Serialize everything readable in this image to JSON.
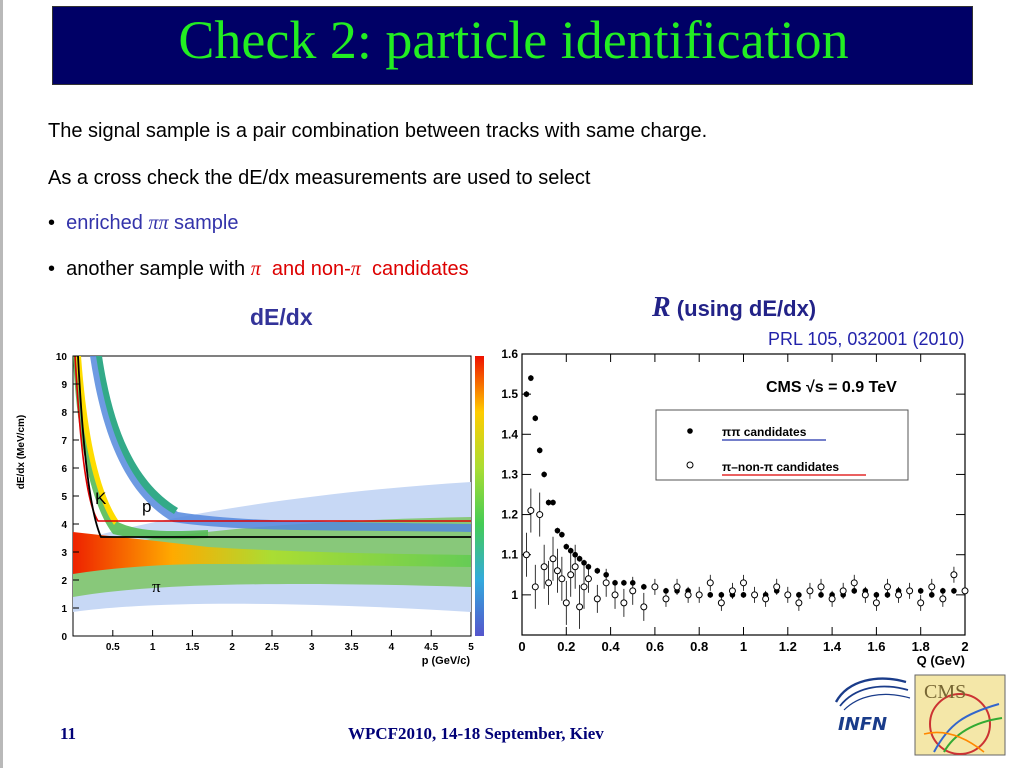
{
  "slide": {
    "title": "Check  2: particle identification",
    "line1": "The signal sample is a pair combination between tracks with same charge.",
    "line2": "As a cross check the dE/dx measurements are used to select",
    "bullet_mark": "•",
    "bullet1": {
      "pre": "enriched ",
      "sym": "ππ",
      "post": " sample"
    },
    "bullet2": {
      "pre": "another sample with ",
      "sym1": "π",
      "mid": "  and non-",
      "sym2": "π",
      "post": "  candidates"
    },
    "footer_page": "11",
    "footer_conf": "WPCF2010, 14-18 September, Kiev"
  },
  "left_plot": {
    "heading": "dE/dx",
    "ylabel": "dE/dx (MeV/cm)",
    "xlabel": "p (GeV/c)",
    "yticks": [
      "0",
      "1",
      "2",
      "3",
      "4",
      "5",
      "6",
      "7",
      "8",
      "9",
      "10"
    ],
    "xticks": [
      "0.5",
      "1",
      "1.5",
      "2",
      "2.5",
      "3",
      "3.5",
      "4",
      "4.5",
      "5"
    ],
    "band_labels": {
      "K": "K",
      "p": "p",
      "pi": "π"
    }
  },
  "right_plot": {
    "heading_symbol": "R",
    "heading_text": " (using dE/dx)",
    "reference": "PRL 105, 032001 (2010)",
    "experiment_label": "CMS  √s = 0.9 TeV",
    "xlabel": "Q (GeV)",
    "legend": [
      "ππ candidates",
      "π–non-π candidates"
    ]
  },
  "chart_data": {
    "type": "scatter",
    "title": "",
    "xlabel": "Q (GeV)",
    "ylabel": "",
    "xlim": [
      0,
      2
    ],
    "ylim": [
      0.9,
      1.6
    ],
    "xticks": [
      "0",
      "0.2",
      "0.4",
      "0.6",
      "0.8",
      "1",
      "1.2",
      "1.4",
      "1.6",
      "1.8",
      "2"
    ],
    "yticks": [
      "1",
      "1.1",
      "1.2",
      "1.3",
      "1.4",
      "1.5",
      "1.6"
    ],
    "series": [
      {
        "name": "ππ candidates",
        "marker": "filled",
        "x": [
          0.02,
          0.04,
          0.06,
          0.08,
          0.1,
          0.12,
          0.14,
          0.16,
          0.18,
          0.2,
          0.22,
          0.24,
          0.26,
          0.28,
          0.3,
          0.34,
          0.38,
          0.42,
          0.46,
          0.5,
          0.55,
          0.6,
          0.65,
          0.7,
          0.75,
          0.8,
          0.85,
          0.9,
          0.95,
          1.0,
          1.05,
          1.1,
          1.15,
          1.2,
          1.25,
          1.3,
          1.35,
          1.4,
          1.45,
          1.5,
          1.55,
          1.6,
          1.65,
          1.7,
          1.75,
          1.8,
          1.85,
          1.9,
          1.95,
          2.0
        ],
        "y": [
          1.5,
          1.54,
          1.44,
          1.36,
          1.3,
          1.23,
          1.23,
          1.16,
          1.15,
          1.12,
          1.11,
          1.1,
          1.09,
          1.08,
          1.07,
          1.06,
          1.05,
          1.03,
          1.03,
          1.03,
          1.02,
          1.02,
          1.01,
          1.01,
          1.01,
          1.0,
          1.0,
          1.0,
          1.0,
          1.0,
          1.0,
          1.0,
          1.01,
          1.0,
          1.0,
          1.01,
          1.0,
          1.0,
          1.0,
          1.01,
          1.01,
          1.0,
          1.0,
          1.01,
          1.01,
          1.01,
          1.0,
          1.01,
          1.01,
          1.01
        ]
      },
      {
        "name": "π–non-π candidates",
        "marker": "open",
        "x": [
          0.02,
          0.04,
          0.06,
          0.08,
          0.1,
          0.12,
          0.14,
          0.16,
          0.18,
          0.2,
          0.22,
          0.24,
          0.26,
          0.28,
          0.3,
          0.34,
          0.38,
          0.42,
          0.46,
          0.5,
          0.55,
          0.6,
          0.65,
          0.7,
          0.75,
          0.8,
          0.85,
          0.9,
          0.95,
          1.0,
          1.05,
          1.1,
          1.15,
          1.2,
          1.25,
          1.3,
          1.35,
          1.4,
          1.45,
          1.5,
          1.55,
          1.6,
          1.65,
          1.7,
          1.75,
          1.8,
          1.85,
          1.9,
          1.95,
          2.0
        ],
        "y": [
          1.1,
          1.21,
          1.02,
          1.2,
          1.07,
          1.03,
          1.09,
          1.06,
          1.04,
          0.98,
          1.05,
          1.07,
          0.97,
          1.02,
          1.04,
          0.99,
          1.03,
          1.0,
          0.98,
          1.01,
          0.97,
          1.02,
          0.99,
          1.02,
          1.0,
          1.0,
          1.03,
          0.98,
          1.01,
          1.03,
          1.0,
          0.99,
          1.02,
          1.0,
          0.98,
          1.01,
          1.02,
          0.99,
          1.01,
          1.03,
          1.0,
          0.98,
          1.02,
          1.0,
          1.01,
          0.98,
          1.02,
          0.99,
          1.05,
          1.01
        ]
      }
    ]
  },
  "colors": {
    "title_bg": "#000066",
    "title_text": "#22ee22",
    "blue_text": "#3333aa",
    "red_text": "#dd0000",
    "footer_text": "#000077"
  }
}
